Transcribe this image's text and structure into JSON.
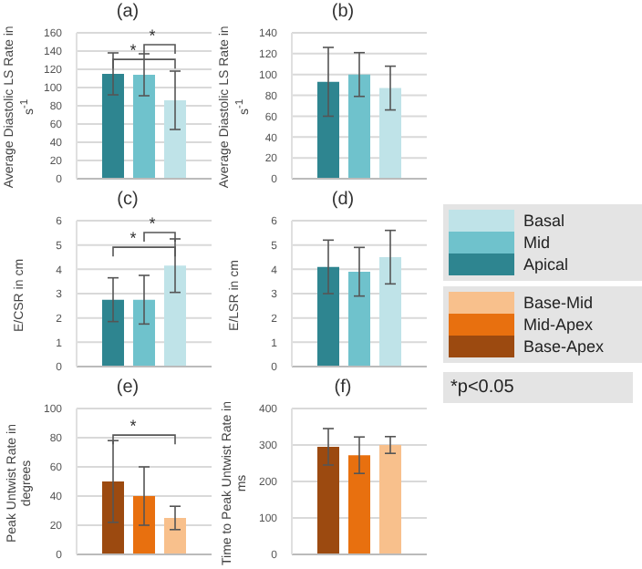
{
  "chart_data": [
    {
      "type": "bar",
      "title": "(a)",
      "ylabel": "Average Diastolic LS Rate in s$^{-1}$",
      "categories": [
        null
      ],
      "ylim": [
        0,
        160
      ],
      "yticks": [
        0,
        20,
        40,
        60,
        80,
        100,
        120,
        140,
        160
      ],
      "grid": "y",
      "annotations": [
        "*",
        "*"
      ],
      "legend": "right",
      "series": [
        {
          "name": "Apical",
          "color": "#2e8590",
          "values": [
            115
          ],
          "errors": [
            23
          ]
        },
        {
          "name": "Mid",
          "color": "#6fc2cc",
          "values": [
            114
          ],
          "errors": [
            23
          ]
        },
        {
          "name": "Basal",
          "color": "#bfe3e8",
          "values": [
            86
          ],
          "errors": [
            32
          ]
        }
      ]
    },
    {
      "type": "bar",
      "title": "(b)",
      "ylabel": "Average Diastolic LS Rate in s$^{-1}$",
      "categories": [
        null
      ],
      "ylim": [
        0,
        140
      ],
      "yticks": [
        0,
        20,
        40,
        60,
        80,
        100,
        120,
        140
      ],
      "grid": "y",
      "series": [
        {
          "color": "#2e8590",
          "values": [
            93
          ],
          "errors": [
            33
          ]
        },
        {
          "color": "#6fc2cc",
          "values": [
            100
          ],
          "errors": [
            21
          ]
        },
        {
          "color": "#bfe3e8",
          "values": [
            87
          ],
          "errors": [
            21
          ]
        }
      ]
    },
    {
      "type": "bar",
      "title": "(c)",
      "ylabel": "E/CSR in cm",
      "categories": [
        null
      ],
      "ylim": [
        0,
        6
      ],
      "yticks": [
        0,
        1,
        2,
        3,
        4,
        5,
        6
      ],
      "grid": "y",
      "annotations": [
        "*",
        "*"
      ],
      "series": [
        {
          "color": "#2e8590",
          "values": [
            2.75
          ],
          "errors": [
            0.9
          ]
        },
        {
          "color": "#6fc2cc",
          "values": [
            2.75
          ],
          "errors": [
            1.0
          ]
        },
        {
          "color": "#bfe3e8",
          "values": [
            4.15
          ],
          "errors": [
            1.1
          ]
        }
      ]
    },
    {
      "type": "bar",
      "title": "(d)",
      "ylabel": "E/LSR in cm",
      "categories": [
        null
      ],
      "ylim": [
        0,
        6
      ],
      "yticks": [
        0,
        1,
        2,
        3,
        4,
        5,
        6
      ],
      "grid": "y",
      "series": [
        {
          "color": "#2e8590",
          "values": [
            4.1
          ],
          "errors": [
            1.1
          ]
        },
        {
          "color": "#6fc2cc",
          "values": [
            3.9
          ],
          "errors": [
            1.0
          ]
        },
        {
          "color": "#bfe3e8",
          "values": [
            4.5
          ],
          "errors": [
            1.1
          ]
        }
      ]
    },
    {
      "type": "bar",
      "title": "(e)",
      "ylabel": "Peak Untwist Rate in degrees",
      "categories": [
        null
      ],
      "ylim": [
        0,
        100
      ],
      "yticks": [
        0,
        20,
        40,
        60,
        80,
        100
      ],
      "grid": "y",
      "annotations": [
        "*"
      ],
      "legend": "right",
      "series": [
        {
          "name": "Base-Apex",
          "color": "#9c4a10",
          "values": [
            50
          ],
          "errors": [
            28
          ]
        },
        {
          "name": "Mid-Apex",
          "color": "#e8700f",
          "values": [
            40
          ],
          "errors": [
            20
          ]
        },
        {
          "name": "Base-Mid",
          "color": "#f8c08c",
          "values": [
            25
          ],
          "errors": [
            8
          ]
        }
      ]
    },
    {
      "type": "bar",
      "title": "(f)",
      "ylabel": "Time to Peak Untwist Rate in ms",
      "categories": [
        null
      ],
      "ylim": [
        0,
        400
      ],
      "yticks": [
        0,
        100,
        200,
        300,
        400
      ],
      "grid": "y",
      "series": [
        {
          "color": "#9c4a10",
          "values": [
            295
          ],
          "errors": [
            50
          ]
        },
        {
          "color": "#e8700f",
          "values": [
            272
          ],
          "errors": [
            50
          ]
        },
        {
          "color": "#f8c08c",
          "values": [
            300
          ],
          "errors": [
            23
          ]
        }
      ]
    },
    {
      "type": "other",
      "annotations": [
        "*p<0.05"
      ]
    }
  ]
}
